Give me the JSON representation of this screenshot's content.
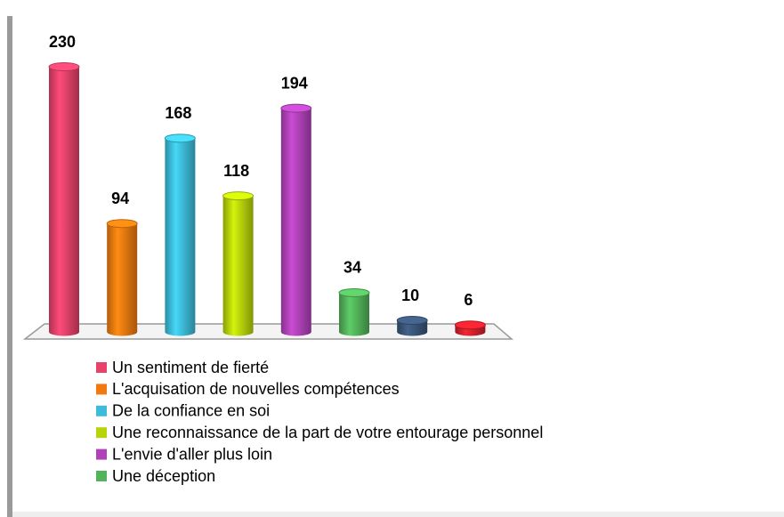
{
  "chart_data": {
    "type": "bar",
    "categories": [
      "Un sentiment de fierté",
      "L'acquisation de nouvelles compétences",
      "De la confiance en soi",
      "Une reconnaissance de la part de votre entourage personnel",
      "L'envie d'aller plus loin",
      "Une déception",
      null,
      null
    ],
    "values": [
      230,
      94,
      168,
      118,
      194,
      34,
      10,
      6
    ],
    "colors": [
      "#e8416a",
      "#f07a10",
      "#3cbcd8",
      "#b8d30a",
      "#b042b8",
      "#52b35a",
      "#3a5578",
      "#d4202a"
    ]
  }
}
